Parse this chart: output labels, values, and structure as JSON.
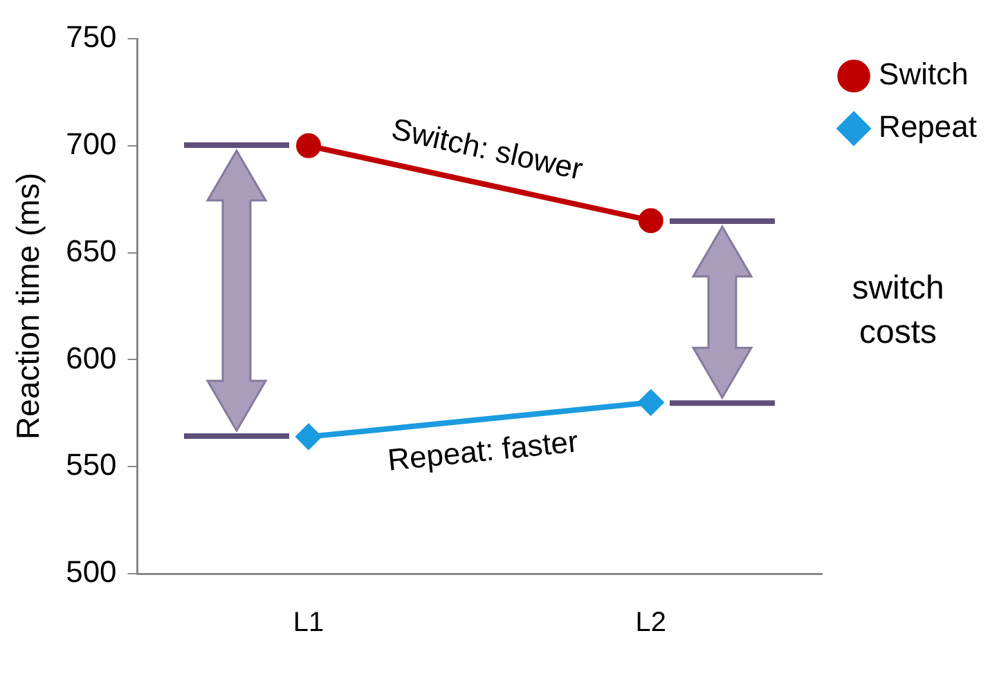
{
  "chart_data": {
    "type": "line",
    "ylabel": "Reaction time (ms)",
    "categories": [
      "L1",
      "L2"
    ],
    "series": [
      {
        "name": "Switch",
        "color": "#c00000",
        "marker": "circle",
        "values": [
          700,
          665
        ]
      },
      {
        "name": "Repeat",
        "color": "#1b9be0",
        "marker": "diamond",
        "values": [
          564,
          580
        ]
      }
    ],
    "ylim": [
      500,
      750
    ],
    "yticks": [
      500,
      550,
      600,
      650,
      700,
      750
    ],
    "grid": false,
    "legend": "top right",
    "annotations": [
      "Switch: slower",
      "Repeat: faster",
      "switch costs"
    ]
  }
}
